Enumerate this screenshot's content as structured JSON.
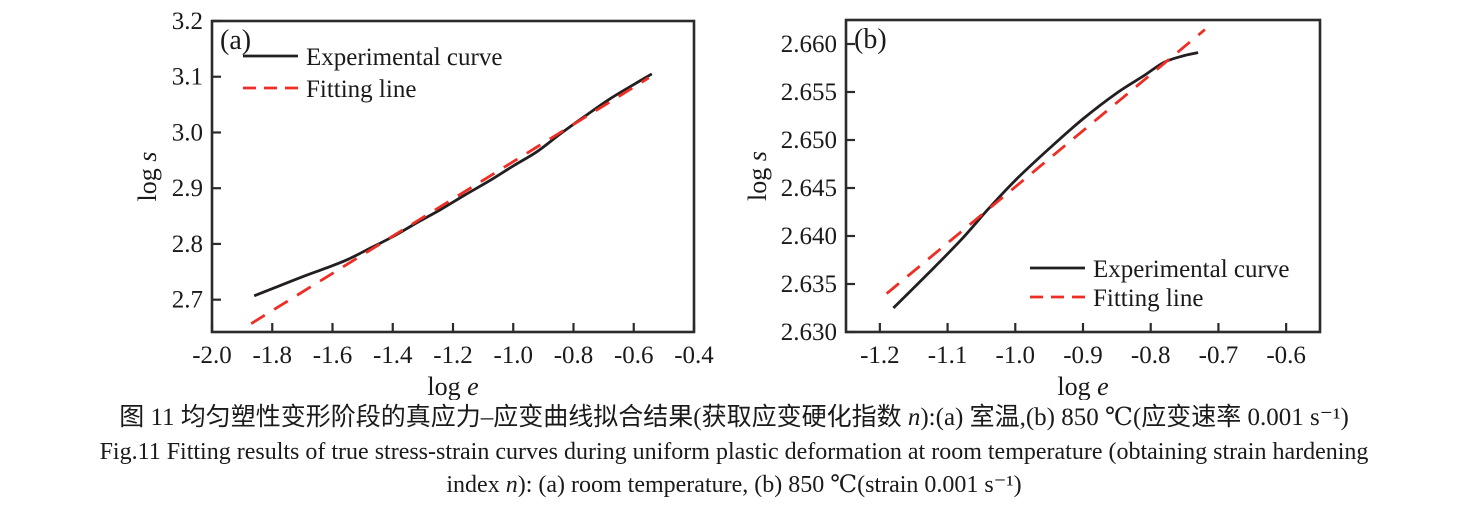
{
  "colors": {
    "experimental": "#231f20",
    "fitting": "#ee2e24",
    "axis": "#2b2b2b",
    "text": "#1a1a1a",
    "background": "#ffffff"
  },
  "chart_data": [
    {
      "id": "a",
      "type": "line",
      "panel_label": "(a)",
      "xlabel": {
        "prefix": "log ",
        "variable": "e"
      },
      "ylabel": {
        "prefix": "log ",
        "variable": "s"
      },
      "xlim": [
        -2.0,
        -0.4
      ],
      "ylim": [
        2.642,
        3.2
      ],
      "grid": false,
      "xticks": [
        {
          "v": -2.0,
          "label": "-2.0"
        },
        {
          "v": -1.8,
          "label": "-1.8"
        },
        {
          "v": -1.6,
          "label": "-1.6"
        },
        {
          "v": -1.4,
          "label": "-1.4"
        },
        {
          "v": -1.2,
          "label": "-1.2"
        },
        {
          "v": -1.0,
          "label": "-1.0"
        },
        {
          "v": -0.8,
          "label": "-0.8"
        },
        {
          "v": -0.6,
          "label": "-0.6"
        },
        {
          "v": -0.4,
          "label": "-0.4"
        }
      ],
      "yticks": [
        {
          "v": 2.7,
          "label": "2.7"
        },
        {
          "v": 2.8,
          "label": "2.8"
        },
        {
          "v": 2.9,
          "label": "2.9"
        },
        {
          "v": 3.0,
          "label": "3.0"
        },
        {
          "v": 3.1,
          "label": "3.1"
        },
        {
          "v": 3.2,
          "label": "3.2"
        }
      ],
      "legend": {
        "position": "top-left",
        "items": [
          {
            "label": "Experimental curve",
            "style": "solid",
            "color_key": "experimental"
          },
          {
            "label": "Fitting line",
            "style": "dashed",
            "color_key": "fitting"
          }
        ]
      },
      "series": [
        {
          "name": "Experimental curve",
          "style": "solid",
          "color_key": "experimental",
          "points": [
            [
              -1.86,
              2.707
            ],
            [
              -1.78,
              2.724
            ],
            [
              -1.7,
              2.741
            ],
            [
              -1.62,
              2.757
            ],
            [
              -1.55,
              2.772
            ],
            [
              -1.48,
              2.791
            ],
            [
              -1.4,
              2.813
            ],
            [
              -1.32,
              2.838
            ],
            [
              -1.24,
              2.862
            ],
            [
              -1.16,
              2.888
            ],
            [
              -1.08,
              2.913
            ],
            [
              -1.0,
              2.94
            ],
            [
              -0.92,
              2.966
            ],
            [
              -0.84,
              2.999
            ],
            [
              -0.76,
              3.03
            ],
            [
              -0.68,
              3.06
            ],
            [
              -0.6,
              3.086
            ],
            [
              -0.54,
              3.105
            ]
          ]
        },
        {
          "name": "Fitting line",
          "style": "dashed",
          "color_key": "fitting",
          "points": [
            [
              -1.87,
              2.657
            ],
            [
              -0.55,
              3.098
            ]
          ]
        }
      ]
    },
    {
      "id": "b",
      "type": "line",
      "panel_label": "(b)",
      "xlabel": {
        "prefix": "log ",
        "variable": "e"
      },
      "ylabel": {
        "prefix": "log ",
        "variable": "s"
      },
      "xlim": [
        -1.25,
        -0.55
      ],
      "ylim": [
        2.63,
        2.6625
      ],
      "grid": false,
      "xticks": [
        {
          "v": -1.2,
          "label": "-1.2"
        },
        {
          "v": -1.1,
          "label": "-1.1"
        },
        {
          "v": -1.0,
          "label": "-1.0"
        },
        {
          "v": -0.9,
          "label": "-0.9"
        },
        {
          "v": -0.8,
          "label": "-0.8"
        },
        {
          "v": -0.7,
          "label": "-0.7"
        },
        {
          "v": -0.6,
          "label": "-0.6"
        }
      ],
      "yticks": [
        {
          "v": 2.63,
          "label": "2.630"
        },
        {
          "v": 2.635,
          "label": "2.635"
        },
        {
          "v": 2.64,
          "label": "2.640"
        },
        {
          "v": 2.645,
          "label": "2.645"
        },
        {
          "v": 2.65,
          "label": "2.650"
        },
        {
          "v": 2.655,
          "label": "2.655"
        },
        {
          "v": 2.66,
          "label": "2.660"
        }
      ],
      "legend": {
        "position": "bottom-right",
        "items": [
          {
            "label": "Experimental curve",
            "style": "solid",
            "color_key": "experimental"
          },
          {
            "label": "Fitting line",
            "style": "dashed",
            "color_key": "fitting"
          }
        ]
      },
      "series": [
        {
          "name": "Experimental curve",
          "style": "solid",
          "color_key": "experimental",
          "points": [
            [
              -1.18,
              2.6325
            ],
            [
              -1.13,
              2.636
            ],
            [
              -1.08,
              2.6396
            ],
            [
              -1.04,
              2.6428
            ],
            [
              -1.0,
              2.6458
            ],
            [
              -0.95,
              2.6491
            ],
            [
              -0.9,
              2.6522
            ],
            [
              -0.85,
              2.6549
            ],
            [
              -0.81,
              2.6567
            ],
            [
              -0.78,
              2.6581
            ],
            [
              -0.75,
              2.6588
            ],
            [
              -0.73,
              2.6591
            ]
          ]
        },
        {
          "name": "Fitting line",
          "style": "dashed",
          "color_key": "fitting",
          "points": [
            [
              -1.19,
              2.634
            ],
            [
              -0.72,
              2.6615
            ]
          ]
        }
      ]
    }
  ],
  "caption": {
    "zh_segments": [
      {
        "text": "图 11  均匀塑性变形阶段的真应力–应变曲线拟合结果(获取应变硬化指数 "
      },
      {
        "text": "n",
        "italic": true
      },
      {
        "text": "):(a) 室温,(b) 850 ℃(应变速率 0.001 s⁻¹)"
      }
    ],
    "en_line1_segments": [
      {
        "text": "Fig.11  Fitting results of true stress-strain curves during uniform plastic deformation at room temperature (obtaining strain hardening"
      }
    ],
    "en_line2_segments": [
      {
        "text": "index "
      },
      {
        "text": "n",
        "italic": true
      },
      {
        "text": "): (a) room temperature, (b) 850 ℃(strain 0.001 s⁻¹)"
      }
    ]
  }
}
